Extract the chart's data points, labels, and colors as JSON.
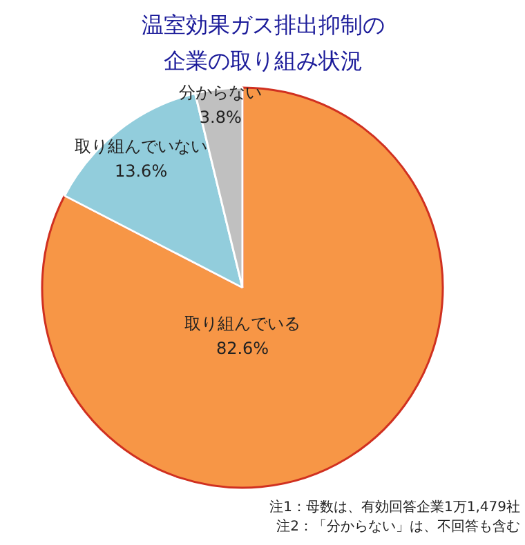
{
  "chart_data": {
    "type": "pie",
    "title": "温室効果ガス排出抑制の企業の取り組み状況",
    "categories": [
      "取り組んでいる",
      "取り組んでいない",
      "分からない"
    ],
    "values": [
      82.6,
      13.6,
      3.8
    ],
    "colors": [
      "#f79646",
      "#92cddc",
      "#c0c0c0"
    ],
    "value_labels": [
      "82.6%",
      "13.6%",
      "3.8%"
    ],
    "annotations": [
      "注1：母数は、有効回答企業1万1,479社",
      "注2：「分からない」は、不回答も含む"
    ]
  }
}
